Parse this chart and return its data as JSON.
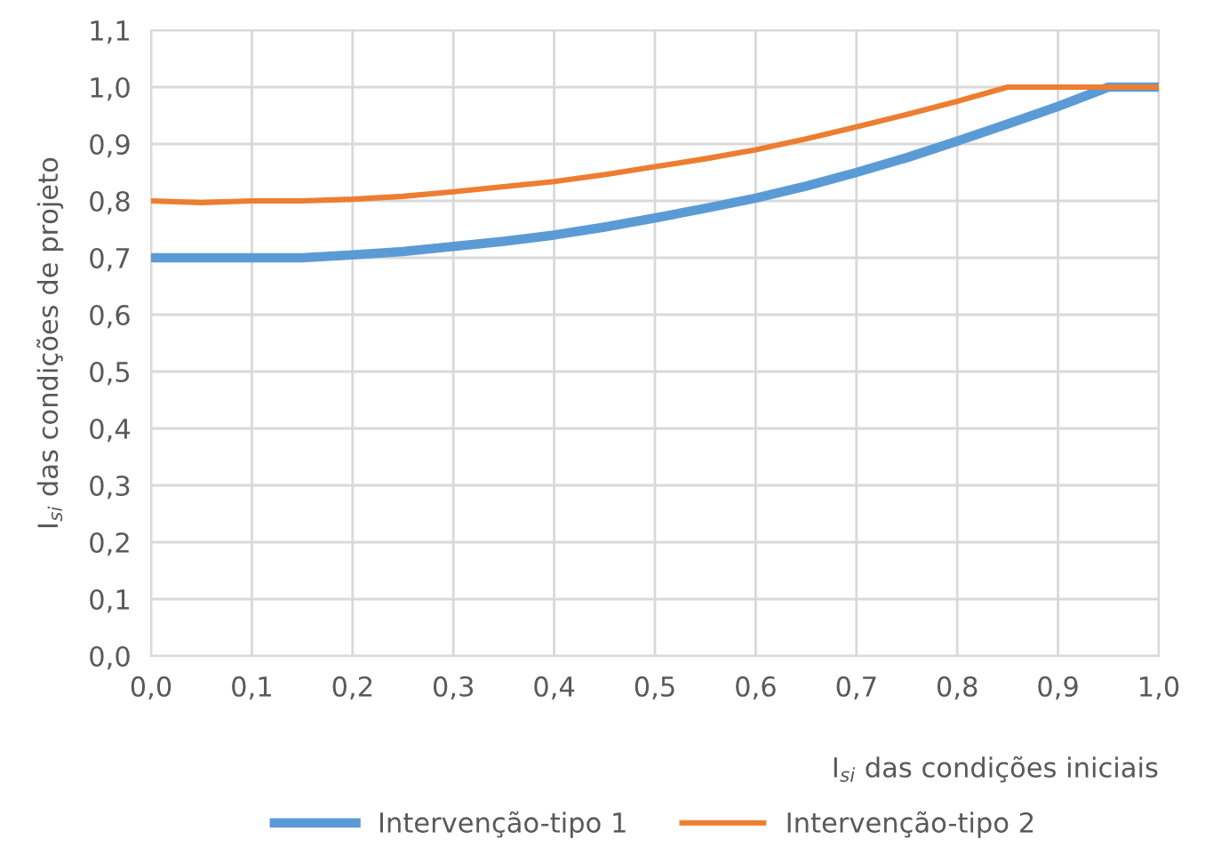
{
  "chart_data": {
    "type": "line",
    "xlabel": "I$_{si}$ das condições iniciais",
    "ylabel": "I$_{si}$ das condições de projeto",
    "xlim": [
      0,
      1
    ],
    "ylim": [
      0,
      1.1
    ],
    "xticks": [
      {
        "value": 0,
        "label": "0,0"
      },
      {
        "value": 0.1,
        "label": "0,1"
      },
      {
        "value": 0.2,
        "label": "0,2"
      },
      {
        "value": 0.3,
        "label": "0,3"
      },
      {
        "value": 0.4,
        "label": "0,4"
      },
      {
        "value": 0.5,
        "label": "0,5"
      },
      {
        "value": 0.6,
        "label": "0,6"
      },
      {
        "value": 0.7,
        "label": "0,7"
      },
      {
        "value": 0.8,
        "label": "0,8"
      },
      {
        "value": 0.9,
        "label": "0,9"
      },
      {
        "value": 1,
        "label": "1,0"
      }
    ],
    "yticks": [
      {
        "value": 0,
        "label": "0,0"
      },
      {
        "value": 0.1,
        "label": "0,1"
      },
      {
        "value": 0.2,
        "label": "0,2"
      },
      {
        "value": 0.3,
        "label": "0,3"
      },
      {
        "value": 0.4,
        "label": "0,4"
      },
      {
        "value": 0.5,
        "label": "0,5"
      },
      {
        "value": 0.6,
        "label": "0,6"
      },
      {
        "value": 0.7,
        "label": "0,7"
      },
      {
        "value": 0.8,
        "label": "0,8"
      },
      {
        "value": 0.9,
        "label": "0,9"
      },
      {
        "value": 1,
        "label": "1,0"
      },
      {
        "value": 1.1,
        "label": "1,1"
      }
    ],
    "grid": true,
    "legend": "bottom",
    "marker": "none",
    "line_style": "solid",
    "series": [
      {
        "name": "Intervenção-tipo 1",
        "color": "#5b9bd5",
        "x": [
          0,
          0.05,
          0.1,
          0.15,
          0.2,
          0.25,
          0.3,
          0.35,
          0.4,
          0.45,
          0.5,
          0.55,
          0.6,
          0.65,
          0.7,
          0.75,
          0.8,
          0.85,
          0.9,
          0.95,
          1.0
        ],
        "values": [
          0.7,
          0.7,
          0.7,
          0.7,
          0.705,
          0.711,
          0.72,
          0.729,
          0.74,
          0.754,
          0.77,
          0.787,
          0.805,
          0.826,
          0.85,
          0.876,
          0.905,
          0.935,
          0.966,
          1.0,
          1.0
        ]
      },
      {
        "name": "Intervenção-tipo 2",
        "color": "#ed7d31",
        "x": [
          0,
          0.05,
          0.1,
          0.15,
          0.2,
          0.25,
          0.3,
          0.35,
          0.4,
          0.45,
          0.5,
          0.55,
          0.6,
          0.65,
          0.7,
          0.75,
          0.8,
          0.85,
          0.9,
          0.95,
          1.0
        ],
        "values": [
          0.8,
          0.797,
          0.8,
          0.8,
          0.803,
          0.808,
          0.816,
          0.825,
          0.834,
          0.846,
          0.86,
          0.874,
          0.89,
          0.909,
          0.93,
          0.952,
          0.975,
          1.0,
          1.0,
          1.0,
          1.0
        ]
      }
    ]
  }
}
